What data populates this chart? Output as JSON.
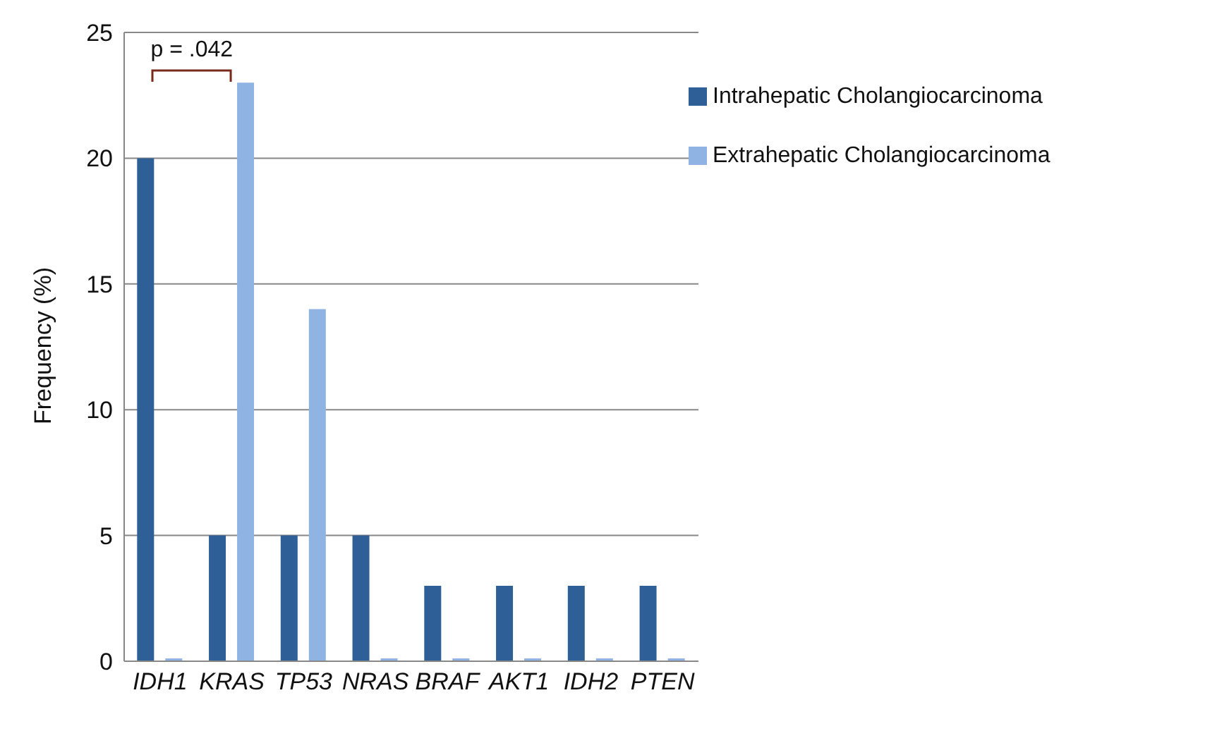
{
  "chart_data": {
    "type": "bar",
    "ylabel": "Frequency (%)",
    "categories": [
      "IDH1",
      "KRAS",
      "TP53",
      "NRAS",
      "BRAF",
      "AKT1",
      "IDH2",
      "PTEN"
    ],
    "series": [
      {
        "name": "Intrahepatic Cholangiocarcinoma",
        "color": "#2e5f97",
        "values": [
          20,
          5,
          5,
          5,
          3,
          3,
          3,
          3
        ]
      },
      {
        "name": "Extrahepatic Cholangiocarcinoma",
        "color": "#8fb4e3",
        "values": [
          0,
          23,
          14,
          0,
          0,
          0,
          0,
          0
        ]
      }
    ],
    "ylim": [
      0,
      25
    ],
    "yticks": [
      0,
      5,
      10,
      15,
      20,
      25
    ],
    "grid": "y",
    "legend": "top right",
    "annotations": [
      "p = .042"
    ]
  }
}
